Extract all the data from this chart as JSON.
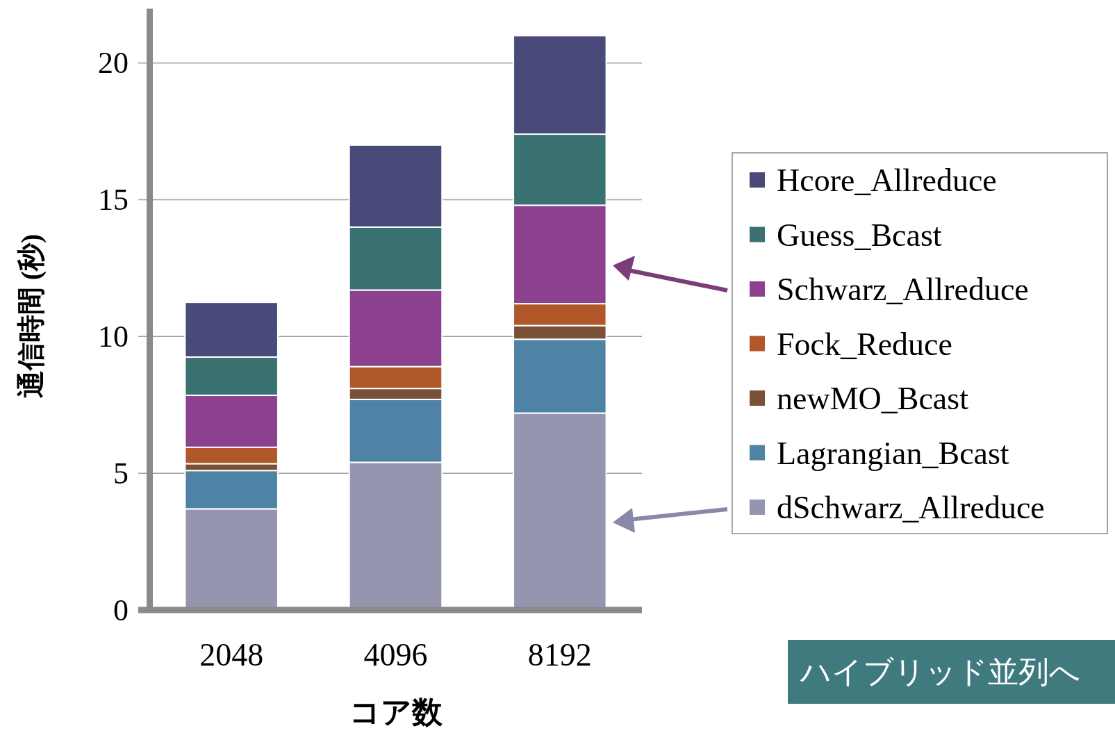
{
  "chart_data": {
    "type": "bar",
    "stacked": true,
    "xlabel": "コア数",
    "ylabel": "通信時間 (秒)",
    "categories": [
      "2048",
      "4096",
      "8192"
    ],
    "series": [
      {
        "name": "dSchwarz_Allreduce",
        "color": "#9595b0",
        "values": [
          3.7,
          5.4,
          7.2
        ]
      },
      {
        "name": "Lagrangian_Bcast",
        "color": "#4f83a5",
        "values": [
          1.4,
          2.3,
          2.7
        ]
      },
      {
        "name": "newMO_Bcast",
        "color": "#7a5038",
        "values": [
          0.25,
          0.4,
          0.5
        ]
      },
      {
        "name": "Fock_Reduce",
        "color": "#b0582a",
        "values": [
          0.6,
          0.8,
          0.8
        ]
      },
      {
        "name": "Schwarz_Allreduce",
        "color": "#8b418d",
        "values": [
          1.9,
          2.8,
          3.6
        ]
      },
      {
        "name": "Guess_Bcast",
        "color": "#3a7272",
        "values": [
          1.4,
          2.3,
          2.6
        ]
      },
      {
        "name": "Hcore_Allreduce",
        "color": "#4a4a7a",
        "values": [
          2.0,
          3.0,
          3.6
        ]
      }
    ],
    "ylim": [
      0,
      22
    ],
    "yticks": [
      0,
      5,
      10,
      15,
      20
    ],
    "grid": "y",
    "legend": "right",
    "annotations": [
      "ハイブリッド並列へ"
    ]
  }
}
